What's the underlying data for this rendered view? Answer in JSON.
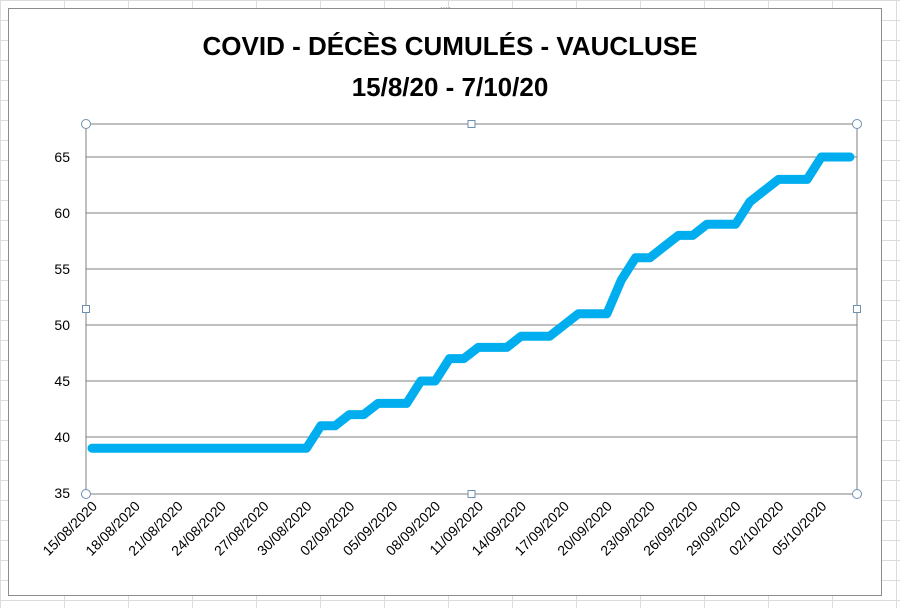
{
  "chart_data": {
    "type": "line",
    "title": "COVID - DÉCÈS CUMULÉS - VAUCLUSE",
    "subtitle": "15/8/20 - 7/10/20",
    "xlabel": "",
    "ylabel": "",
    "ylim": [
      35,
      65
    ],
    "y_ticks": [
      35,
      40,
      45,
      50,
      55,
      60,
      65
    ],
    "grid": true,
    "legend": "none",
    "color": "#00aeef",
    "x_tick_labels": [
      "15/08/2020",
      "18/08/2020",
      "21/08/2020",
      "24/08/2020",
      "27/08/2020",
      "30/08/2020",
      "02/09/2020",
      "05/09/2020",
      "08/09/2020",
      "11/09/2020",
      "14/09/2020",
      "17/09/2020",
      "20/09/2020",
      "23/09/2020",
      "26/09/2020",
      "29/09/2020",
      "02/10/2020",
      "05/10/2020"
    ],
    "x": [
      "15/08/2020",
      "16/08/2020",
      "17/08/2020",
      "18/08/2020",
      "19/08/2020",
      "20/08/2020",
      "21/08/2020",
      "22/08/2020",
      "23/08/2020",
      "24/08/2020",
      "25/08/2020",
      "26/08/2020",
      "27/08/2020",
      "28/08/2020",
      "29/08/2020",
      "30/08/2020",
      "31/08/2020",
      "01/09/2020",
      "02/09/2020",
      "03/09/2020",
      "04/09/2020",
      "05/09/2020",
      "06/09/2020",
      "07/09/2020",
      "08/09/2020",
      "09/09/2020",
      "10/09/2020",
      "11/09/2020",
      "12/09/2020",
      "13/09/2020",
      "14/09/2020",
      "15/09/2020",
      "16/09/2020",
      "17/09/2020",
      "18/09/2020",
      "19/09/2020",
      "20/09/2020",
      "21/09/2020",
      "22/09/2020",
      "23/09/2020",
      "24/09/2020",
      "25/09/2020",
      "26/09/2020",
      "27/09/2020",
      "28/09/2020",
      "29/09/2020",
      "30/09/2020",
      "01/10/2020",
      "02/10/2020",
      "03/10/2020",
      "04/10/2020",
      "05/10/2020",
      "06/10/2020",
      "07/10/2020"
    ],
    "series": [
      {
        "values": [
          39,
          39,
          39,
          39,
          39,
          39,
          39,
          39,
          39,
          39,
          39,
          39,
          39,
          39,
          39,
          39,
          41,
          41,
          42,
          42,
          43,
          43,
          43,
          45,
          45,
          47,
          47,
          48,
          48,
          48,
          49,
          49,
          49,
          50,
          51,
          51,
          51,
          54,
          56,
          56,
          57,
          58,
          58,
          59,
          59,
          59,
          61,
          62,
          63,
          63,
          63,
          65,
          65,
          65
        ]
      }
    ]
  }
}
